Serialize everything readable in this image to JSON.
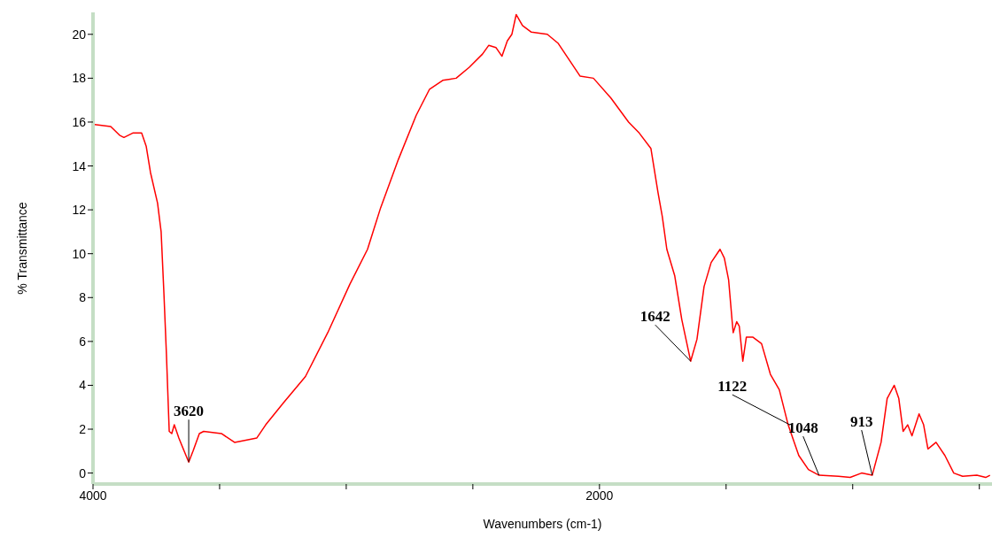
{
  "chart_data": {
    "type": "line",
    "xlabel": "Wavenumbers (cm-1)",
    "ylabel": "% Transmittance",
    "xlim": [
      4000,
      450
    ],
    "xticks": [
      4000,
      {
        "value": 3500,
        "label": null
      },
      {
        "value": 3000,
        "label": null
      },
      {
        "value": 2500,
        "label": null
      },
      2000,
      {
        "value": 1500,
        "label": null
      },
      {
        "value": 1000,
        "label": null
      },
      {
        "value": 500,
        "label": null
      }
    ],
    "ylim": [
      -0.5,
      21
    ],
    "yticks": [
      0,
      2,
      4,
      6,
      8,
      10,
      12,
      14,
      16,
      18,
      20
    ],
    "grid": false,
    "legend": false,
    "marker": "none",
    "line_style": "solid",
    "series": [
      {
        "color": "#ff0000",
        "x": [
          4000,
          3930,
          3895,
          3878,
          3843,
          3808,
          3790,
          3773,
          3745,
          3731,
          3720,
          3710,
          3699,
          3689,
          3679,
          3661,
          3640,
          3622,
          3605,
          3580,
          3563,
          3493,
          3441,
          3353,
          3318,
          3248,
          3161,
          3073,
          2986,
          2916,
          2864,
          2794,
          2724,
          2671,
          2619,
          2566,
          2514,
          2462,
          2437,
          2409,
          2385,
          2364,
          2346,
          2329,
          2304,
          2269,
          2206,
          2164,
          2077,
          2024,
          1955,
          1885,
          1843,
          1797,
          1769,
          1752,
          1734,
          1703,
          1675,
          1640,
          1615,
          1587,
          1559,
          1524,
          1507,
          1490,
          1476,
          1472,
          1458,
          1448,
          1434,
          1420,
          1395,
          1360,
          1325,
          1290,
          1255,
          1213,
          1175,
          1133,
          1056,
          1010,
          965,
          923,
          888,
          864,
          836,
          818,
          801,
          783,
          766,
          738,
          720,
          703,
          671,
          636,
          601,
          566,
          510,
          475,
          458
        ],
        "values": [
          15.9,
          15.8,
          15.4,
          15.3,
          15.5,
          15.5,
          14.9,
          13.7,
          12.3,
          11.0,
          8.2,
          5.4,
          1.9,
          1.8,
          2.2,
          1.6,
          1.0,
          0.5,
          1.0,
          1.8,
          1.9,
          1.8,
          1.4,
          1.6,
          2.2,
          3.2,
          4.4,
          6.4,
          8.6,
          10.2,
          12.1,
          14.3,
          16.3,
          17.5,
          17.9,
          18.0,
          18.5,
          19.1,
          19.5,
          19.4,
          19.0,
          19.7,
          20.0,
          20.9,
          20.4,
          20.1,
          20.0,
          19.6,
          18.1,
          18.0,
          17.1,
          16.0,
          15.5,
          14.8,
          12.8,
          11.7,
          10.2,
          9.0,
          7.0,
          5.1,
          6.1,
          8.5,
          9.6,
          10.2,
          9.8,
          8.8,
          6.9,
          6.4,
          6.9,
          6.7,
          5.1,
          6.2,
          6.2,
          5.9,
          4.5,
          3.8,
          2.2,
          0.8,
          0.16,
          -0.1,
          -0.15,
          -0.2,
          0.0,
          -0.1,
          1.4,
          3.4,
          4.0,
          3.4,
          1.9,
          2.2,
          1.7,
          2.7,
          2.2,
          1.1,
          1.4,
          0.8,
          0.0,
          -0.15,
          -0.1,
          -0.2,
          -0.1
        ]
      }
    ],
    "annotations": [
      {
        "text": "3620",
        "x": 3622,
        "y": 0.5
      },
      {
        "text": "1642",
        "x": 1640,
        "y": 5.1
      },
      {
        "text": "1122",
        "x": 1248,
        "y": 2.2
      },
      {
        "text": "1048",
        "x": 1133,
        "y": -0.1
      },
      {
        "text": "913",
        "x": 923,
        "y": -0.1
      }
    ]
  }
}
